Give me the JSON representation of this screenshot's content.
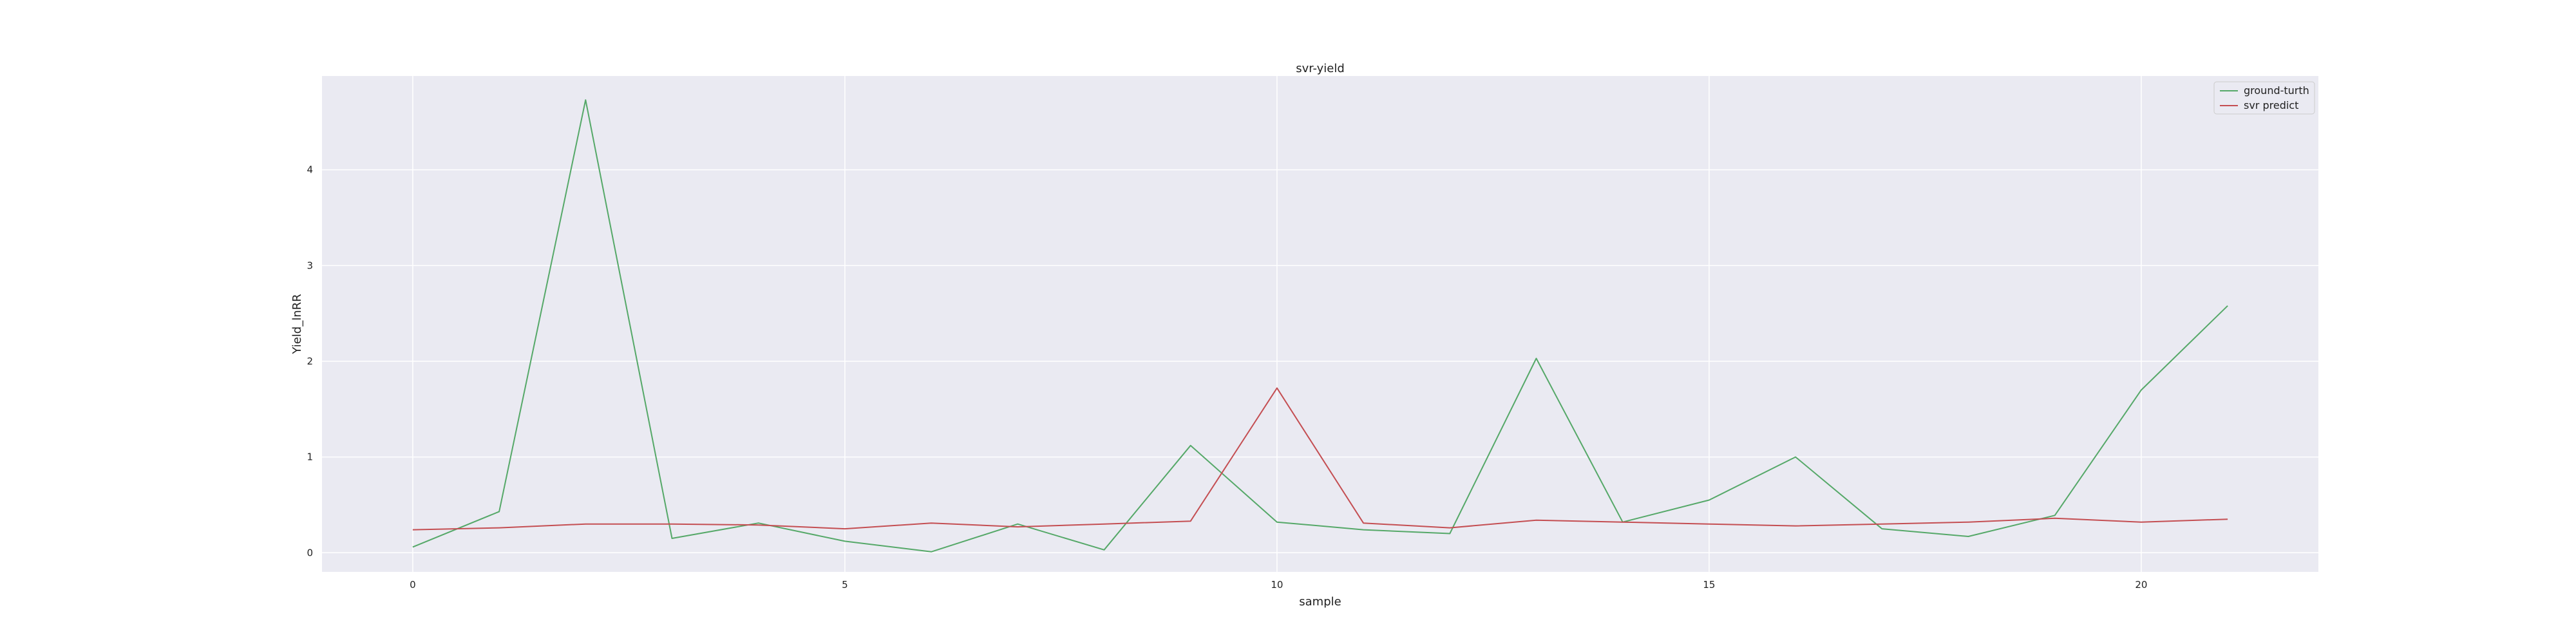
{
  "chart_data": {
    "type": "line",
    "title": "svr-yield",
    "xlabel": "sample",
    "ylabel": "Yield_lnRR",
    "x": [
      0,
      1,
      2,
      3,
      4,
      5,
      6,
      7,
      8,
      9,
      10,
      11,
      12,
      13,
      14,
      15,
      16,
      17,
      18,
      19,
      20,
      21
    ],
    "xlim": [
      -1.05,
      22.05
    ],
    "ylim": [
      -0.2,
      4.98
    ],
    "xticks": [
      0,
      5,
      10,
      15,
      20
    ],
    "yticks": [
      0,
      1,
      2,
      3,
      4
    ],
    "grid": true,
    "legend_position": "top-right",
    "series": [
      {
        "name": "ground-turth",
        "color": "#55a868",
        "values": [
          0.06,
          0.43,
          4.73,
          0.15,
          0.31,
          0.12,
          0.01,
          0.3,
          0.03,
          1.12,
          0.32,
          0.24,
          0.2,
          2.03,
          0.32,
          0.55,
          1.0,
          0.25,
          0.17,
          0.39,
          1.7,
          2.58
        ]
      },
      {
        "name": "svr predict",
        "color": "#c44e52",
        "values": [
          0.24,
          0.26,
          0.3,
          0.3,
          0.29,
          0.25,
          0.31,
          0.27,
          0.3,
          0.33,
          1.72,
          0.31,
          0.26,
          0.34,
          0.32,
          0.3,
          0.28,
          0.3,
          0.32,
          0.36,
          0.32,
          0.35
        ]
      }
    ],
    "plot_background": "#eaeaf2",
    "grid_color": "#ffffff"
  }
}
